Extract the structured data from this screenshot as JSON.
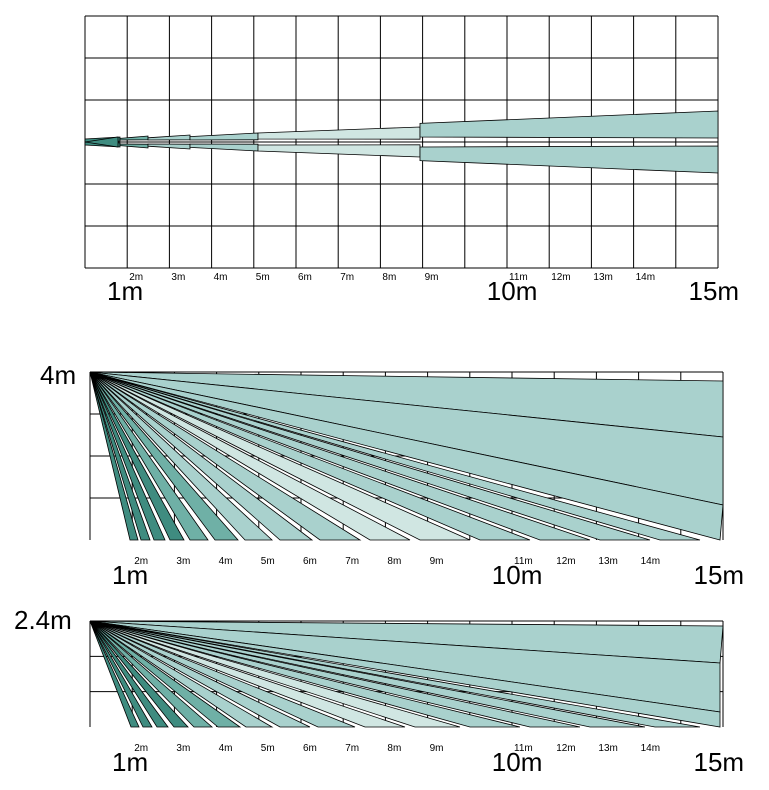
{
  "diagrams": [
    {
      "id": "top-view",
      "height_label": "",
      "ticks": [
        "1m",
        "2m",
        "3m",
        "4m",
        "5m",
        "6m",
        "7m",
        "8m",
        "9m",
        "10m",
        "11m",
        "12m",
        "13m",
        "14m",
        "15m"
      ]
    },
    {
      "id": "side-view-4m",
      "height_label": "4m",
      "ticks": [
        "1m",
        "2m",
        "3m",
        "4m",
        "5m",
        "6m",
        "7m",
        "8m",
        "9m",
        "10m",
        "11m",
        "12m",
        "13m",
        "14m",
        "15m"
      ]
    },
    {
      "id": "side-view-2-4m",
      "height_label": "2.4m",
      "ticks": [
        "1m",
        "2m",
        "3m",
        "4m",
        "5m",
        "6m",
        "7m",
        "8m",
        "9m",
        "10m",
        "11m",
        "12m",
        "13m",
        "14m",
        "15m"
      ]
    }
  ],
  "colors": {
    "beam_light": "#a9d1cd",
    "beam_pale": "#d0e6e2",
    "beam_dark": "#3f8c80",
    "beam_mid": "#6fb0a6",
    "grid": "#000000"
  }
}
